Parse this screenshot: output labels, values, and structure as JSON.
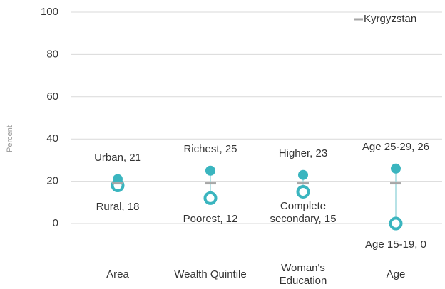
{
  "chart_data": {
    "type": "dot",
    "ylabel": "Percent",
    "categories": [
      "Area",
      "Wealth Quintile",
      "Woman's Education",
      "Age"
    ],
    "series": [
      {
        "color": "#3ab5bf",
        "marker": "filled",
        "values": [
          21,
          25,
          23,
          26
        ],
        "value_labels": [
          "Urban, 21",
          "Richest, 25",
          "Higher, 23",
          "Age 25-29, 26"
        ]
      },
      {
        "color": "#3ab5bf",
        "marker": "hollow",
        "values": [
          18,
          12,
          15,
          0
        ],
        "value_labels": [
          "Rural, 18",
          "Poorest, 12",
          "Complete secondary, 15",
          "Age 15-19, 0"
        ]
      },
      {
        "name": "Kyrgyzstan",
        "color": "#a6a6a6",
        "marker": "dash",
        "values": [
          19,
          19,
          19,
          19
        ]
      }
    ],
    "ylim": [
      0,
      100
    ],
    "yticks": [
      0,
      20,
      40,
      60,
      80,
      100
    ],
    "grid": true,
    "legend": "top-right"
  }
}
